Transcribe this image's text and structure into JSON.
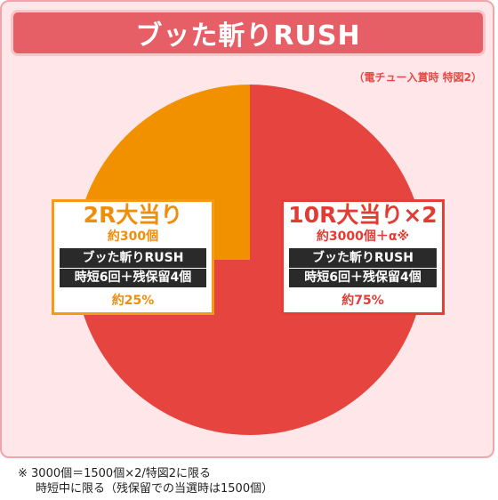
{
  "title": "ブッた斬りRUSH",
  "condition_note": "（電チュー入賞時 特図2）",
  "colors": {
    "rush": "#e6453f",
    "two_round": "#f29100"
  },
  "chart_data": {
    "type": "pie",
    "title": "ブッた斬りRUSH",
    "slices": [
      {
        "label": "10R大当り×2",
        "value": 75
      },
      {
        "label": "2R大当り",
        "value": 25
      }
    ]
  },
  "left_box": {
    "title": "2R大当り",
    "payout": "約300個",
    "mode": "ブッた斬りRUSH",
    "detail": "時短6回＋残保留4個",
    "percent": "約25%"
  },
  "right_box": {
    "title": "10R大当り×2",
    "payout": "約3000個＋α※",
    "mode": "ブッた斬りRUSH",
    "detail": "時短6回＋残保留4個",
    "percent": "約75%"
  },
  "footnote": {
    "line1": "※ 3000個＝1500個×2/特図2に限る",
    "line2": "時短中に限る（残保留での当選時は1500個）"
  }
}
